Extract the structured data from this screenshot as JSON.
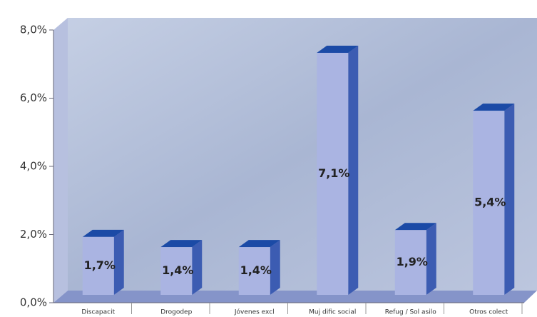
{
  "chart_data": {
    "type": "bar3d",
    "categories": [
      "Discapacit",
      "Drogodep",
      "Jóvenes excl",
      "Muj dific social",
      "Refug / Sol asilo",
      "Otros colect"
    ],
    "values": [
      1.7,
      1.4,
      1.4,
      7.1,
      1.9,
      5.4
    ],
    "value_labels": [
      "1,7%",
      "1,4%",
      "1,4%",
      "7,1%",
      "1,9%",
      "5,4%"
    ],
    "color": "#aab4e2",
    "ylim": [
      0,
      8
    ],
    "yticks": [
      {
        "value": 0,
        "label": "0,0%"
      },
      {
        "value": 2,
        "label": "2,0%"
      },
      {
        "value": 4,
        "label": "4,0%"
      },
      {
        "value": 6,
        "label": "6,0%"
      },
      {
        "value": 8,
        "label": "8,0%"
      }
    ]
  }
}
